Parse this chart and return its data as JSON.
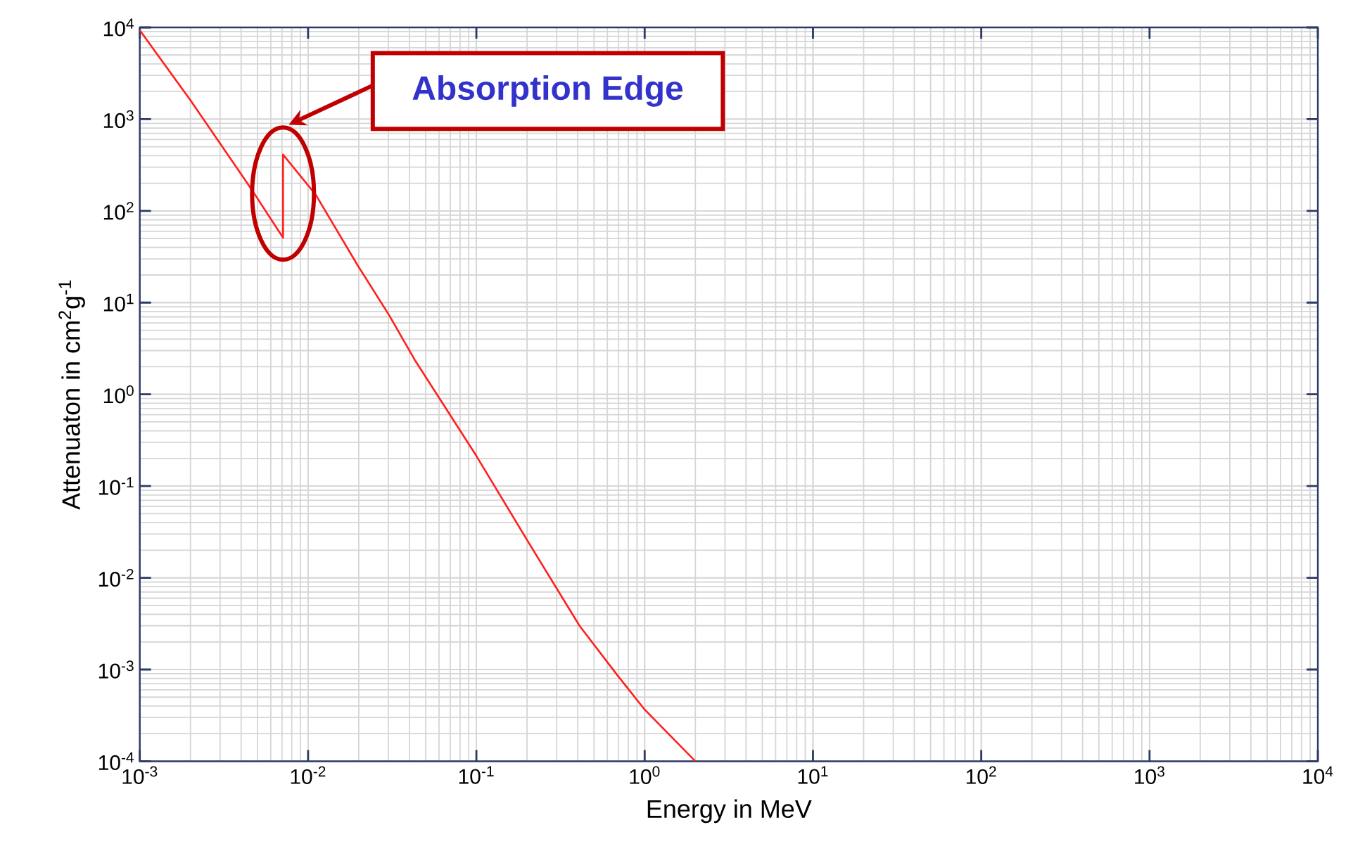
{
  "chart_data": {
    "type": "line",
    "xlabel": "Energy in MeV",
    "ylabel": "Attenuaton in cm$^{2}$g$^{-1}$",
    "x": [
      0.001,
      0.00199,
      0.00458,
      0.0071,
      0.0071,
      0.0111,
      0.0197,
      0.0303,
      0.0433,
      0.1,
      0.203,
      0.41,
      0.687,
      1,
      2
    ],
    "series": [
      {
        "color": "#ff2020",
        "values": [
          9300,
          1630,
          175,
          51,
          410,
          150,
          25.5,
          7.3,
          2.33,
          0.213,
          0.0247,
          0.003,
          0.00087,
          0.000366,
          0.0001
        ]
      }
    ],
    "log": "xy",
    "grid": true,
    "xlim": [
      0.001,
      10000
    ],
    "ylim": [
      0.0001,
      10000
    ],
    "xticks": [
      {
        "value": 0.001,
        "label": "10$^{-3}$"
      },
      {
        "value": 0.01,
        "label": "10$^{-2}$"
      },
      {
        "value": 0.1,
        "label": "10$^{-1}$"
      },
      {
        "value": 1,
        "label": "10$^{0}$"
      },
      {
        "value": 10,
        "label": "10$^{1}$"
      },
      {
        "value": 100,
        "label": "10$^{2}$"
      },
      {
        "value": 1000,
        "label": "10$^{3}$"
      },
      {
        "value": 10000,
        "label": "10$^{4}$"
      }
    ],
    "yticks": [
      {
        "value": 0.0001,
        "label": "10$^{-4}$"
      },
      {
        "value": 0.001,
        "label": "10$^{-3}$"
      },
      {
        "value": 0.01,
        "label": "10$^{-2}$"
      },
      {
        "value": 0.1,
        "label": "10$^{-1}$"
      },
      {
        "value": 1,
        "label": "10$^{0}$"
      },
      {
        "value": 10,
        "label": "10$^{1}$"
      },
      {
        "value": 100,
        "label": "10$^{2}$"
      },
      {
        "value": 1000,
        "label": "10$^{3}$"
      },
      {
        "value": 10000,
        "label": "10$^{4}$"
      }
    ],
    "annotations": [
      "Absorption Edge"
    ]
  }
}
